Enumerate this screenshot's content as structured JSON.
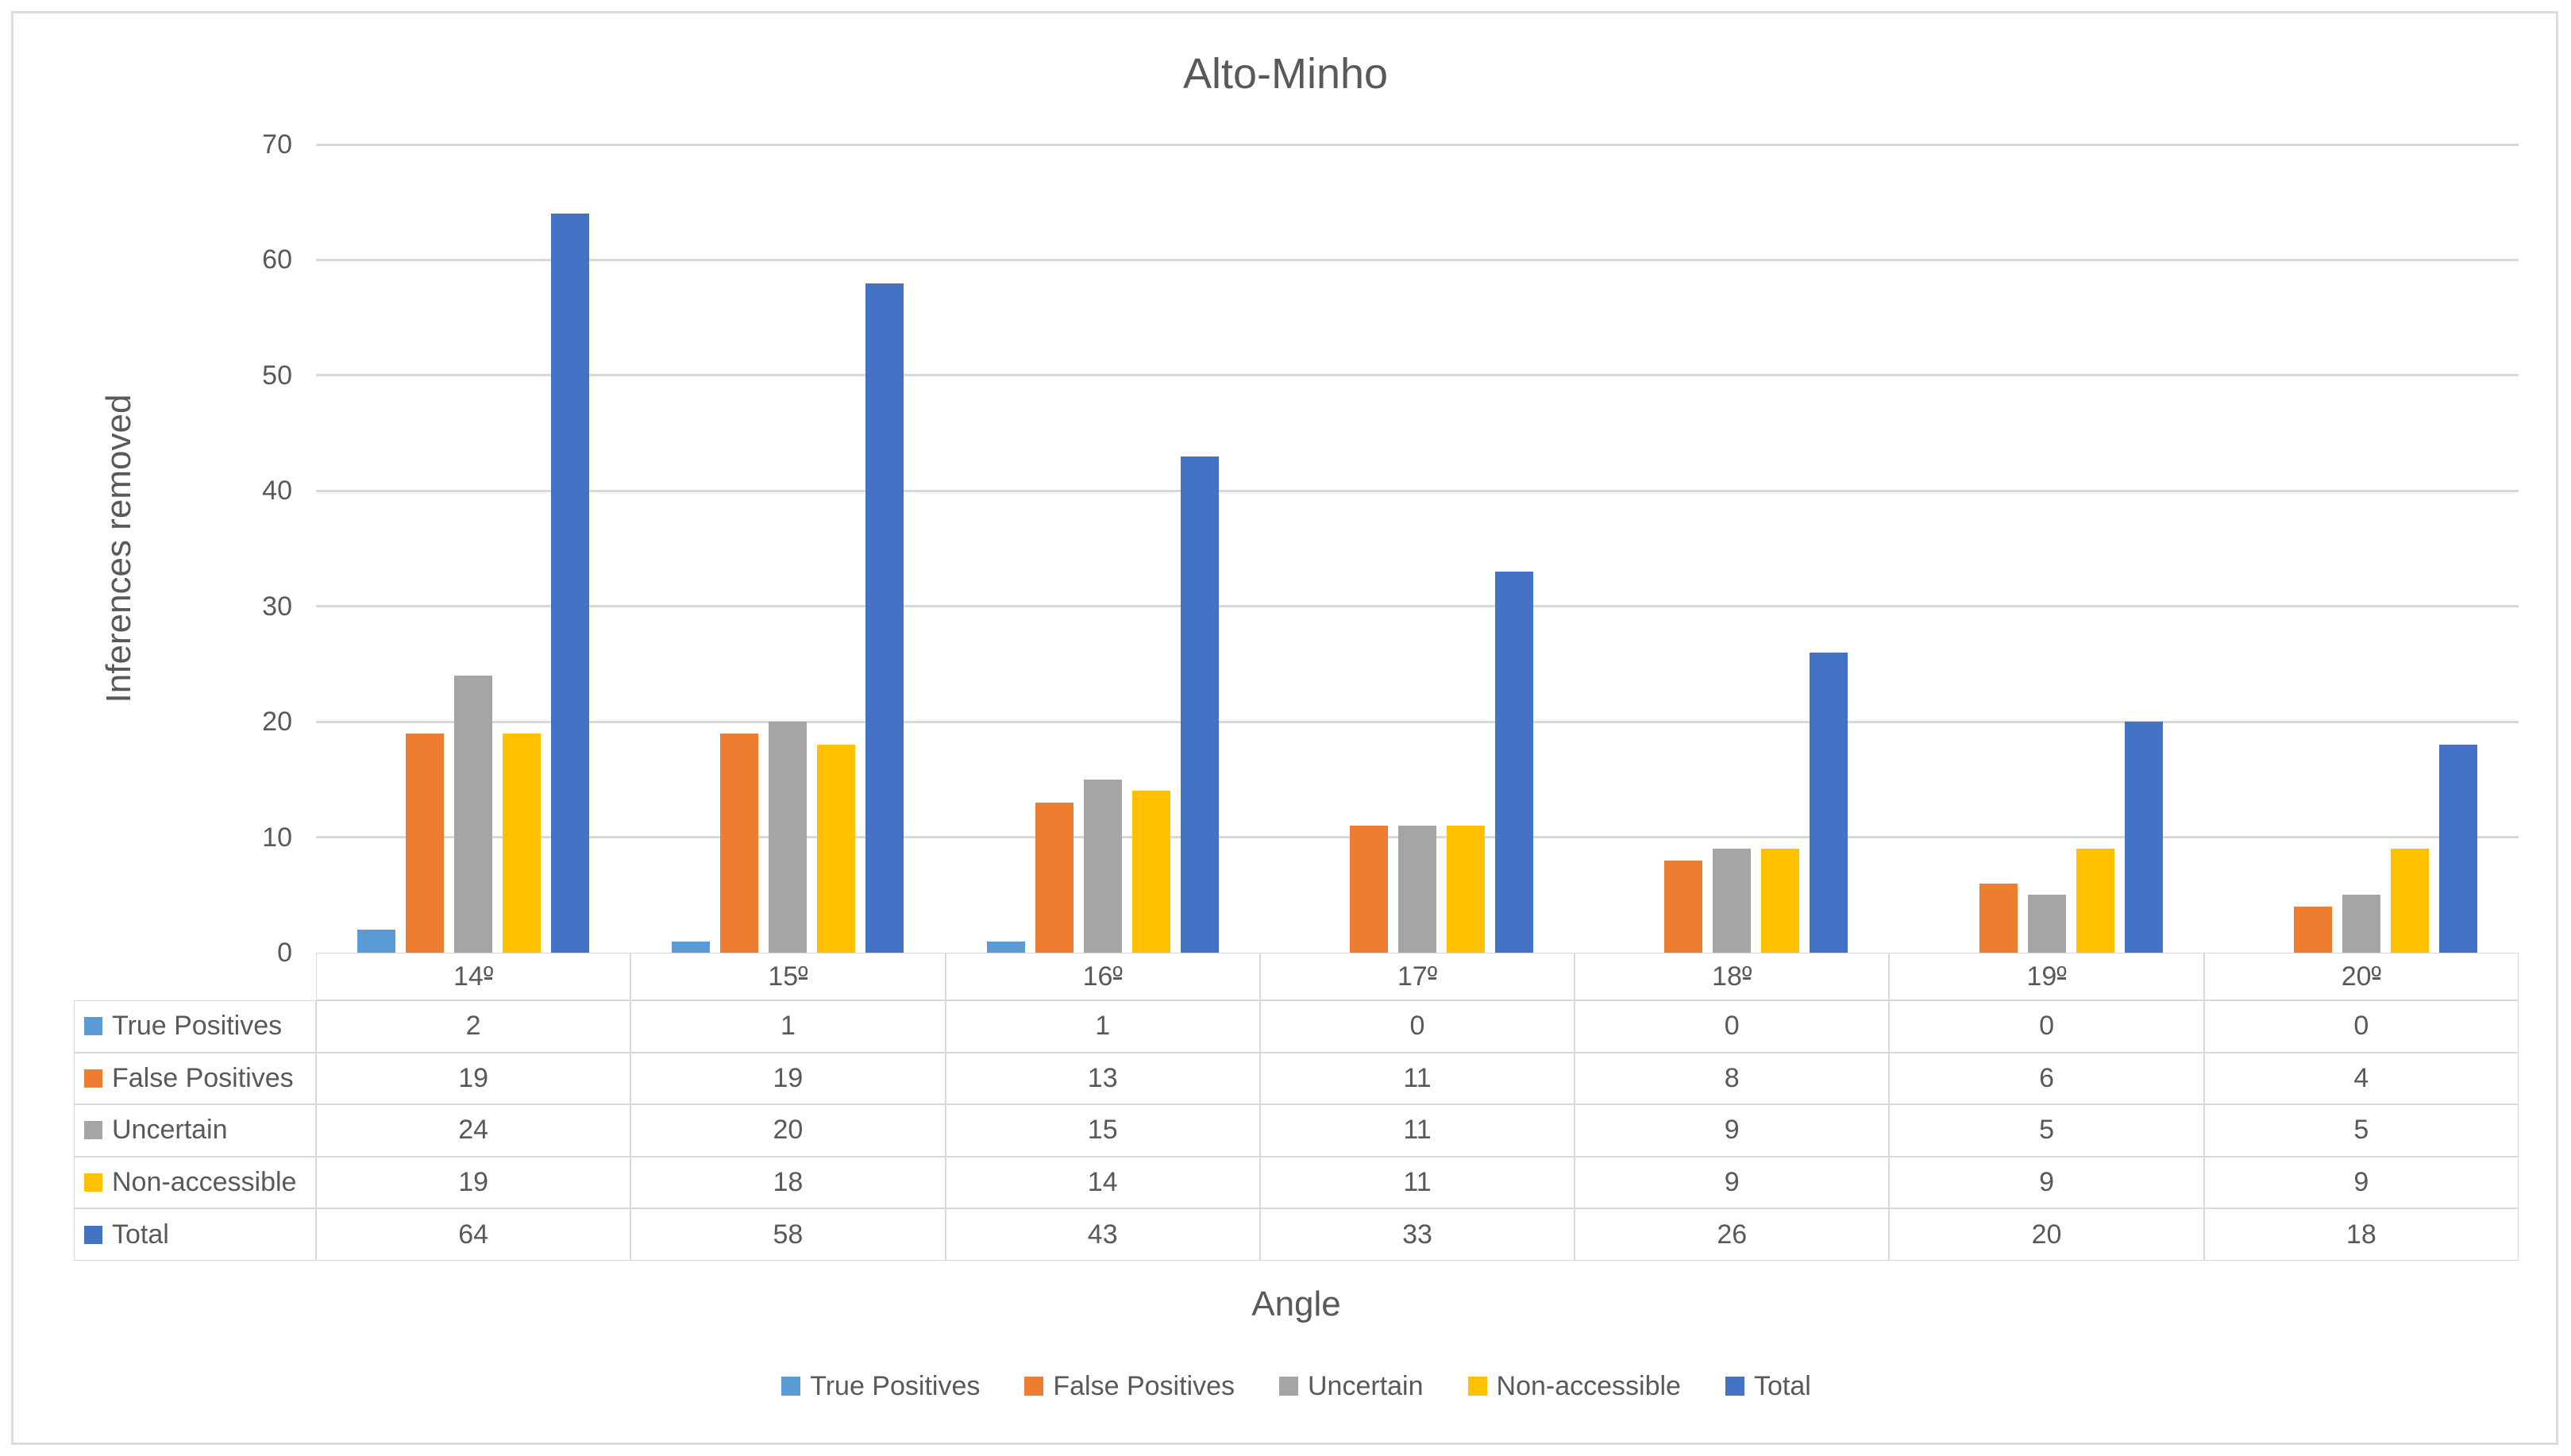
{
  "chart_data": {
    "type": "bar",
    "title": "Alto-Minho",
    "xlabel": "Angle",
    "ylabel": "Inferences removed",
    "categories": [
      "14º",
      "15º",
      "16º",
      "17º",
      "18º",
      "19º",
      "20º"
    ],
    "series": [
      {
        "name": "True Positives",
        "color": "#5B9BD5",
        "values": [
          2,
          1,
          1,
          0,
          0,
          0,
          0
        ]
      },
      {
        "name": "False Positives",
        "color": "#ED7D31",
        "values": [
          19,
          19,
          13,
          11,
          8,
          6,
          4
        ]
      },
      {
        "name": "Uncertain",
        "color": "#A5A5A5",
        "values": [
          24,
          20,
          15,
          11,
          9,
          5,
          5
        ]
      },
      {
        "name": "Non-accessible",
        "color": "#FFC000",
        "values": [
          19,
          18,
          14,
          11,
          9,
          9,
          9
        ]
      },
      {
        "name": "Total",
        "color": "#4472C4",
        "values": [
          64,
          58,
          43,
          33,
          26,
          20,
          18
        ]
      }
    ],
    "ylim": [
      0,
      70
    ],
    "yticks": [
      0,
      10,
      20,
      30,
      40,
      50,
      60,
      70
    ],
    "grid": true,
    "gridline_color": "#D9D9D9",
    "text_color": "#595959",
    "legend_position": "bottom",
    "show_data_table": true
  }
}
